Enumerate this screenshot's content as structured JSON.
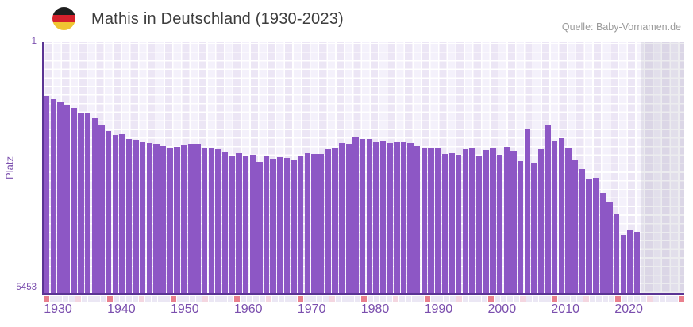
{
  "header": {
    "title": "Mathis in Deutschland (1930-2023)",
    "flag_icon": "german-flag-roundel",
    "flag_colors": [
      "#1e1e1e",
      "#d6212c",
      "#f0c532"
    ]
  },
  "source": {
    "label": "Quelle: Baby-Vornamen.de"
  },
  "chart_data": {
    "type": "bar",
    "title": "Mathis in Deutschland (1930-2023)",
    "xlabel": "",
    "ylabel": "Platz",
    "y_axis_inverted": true,
    "ylim": [
      1,
      5453
    ],
    "y_tick_labels": [
      "1",
      "5453"
    ],
    "x_tick_labels": [
      "1930",
      "1940",
      "1950",
      "1960",
      "1970",
      "1980",
      "1990",
      "2000",
      "2010",
      "2020"
    ],
    "x_ticks": [
      1930,
      1940,
      1950,
      1960,
      1970,
      1980,
      1990,
      2000,
      2010,
      2020
    ],
    "grid": true,
    "legend": false,
    "shaded_region_after_data": true,
    "years": [
      1937,
      1938,
      1939,
      1940,
      1941,
      1942,
      1943,
      1944,
      1945,
      1946,
      1947,
      1948,
      1949,
      1950,
      1951,
      1952,
      1953,
      1954,
      1955,
      1956,
      1957,
      1958,
      1959,
      1960,
      1961,
      1962,
      1963,
      1964,
      1965,
      1966,
      1967,
      1968,
      1969,
      1970,
      1971,
      1972,
      1973,
      1974,
      1975,
      1976,
      1977,
      1978,
      1979,
      1980,
      1981,
      1982,
      1983,
      1984,
      1985,
      1986,
      1987,
      1988,
      1989,
      1990,
      1991,
      1992,
      1993,
      1994,
      1995,
      1996,
      1997,
      1998,
      1999,
      2000,
      2001,
      2002,
      2003,
      2004,
      2005,
      2006,
      2007,
      2008,
      2009,
      2010,
      2011,
      2012,
      2013,
      2014,
      2015,
      2016,
      2017,
      2018,
      2019,
      2020,
      2021,
      2022,
      2023
    ],
    "ranks": [
      1167,
      1241,
      1315,
      1357,
      1431,
      1529,
      1546,
      1660,
      1798,
      1930,
      2016,
      2004,
      2103,
      2142,
      2177,
      2189,
      2218,
      2258,
      2304,
      2275,
      2246,
      2235,
      2218,
      2321,
      2304,
      2331,
      2390,
      2476,
      2418,
      2493,
      2447,
      2607,
      2493,
      2533,
      2504,
      2521,
      2562,
      2493,
      2418,
      2430,
      2430,
      2331,
      2287,
      2189,
      2218,
      2073,
      2114,
      2114,
      2171,
      2149,
      2189,
      2177,
      2177,
      2194,
      2263,
      2287,
      2304,
      2304,
      2435,
      2418,
      2447,
      2331,
      2304,
      2476,
      2343,
      2287,
      2459,
      2275,
      2361,
      2590,
      1873,
      2619,
      2331,
      1815,
      2159,
      2090,
      2321,
      2580,
      2762,
      2981,
      2955,
      3279,
      3481,
      3739,
      4199,
      4083,
      4130
    ],
    "colors": {
      "bar": "#8d57c5",
      "axis": "#5b3494",
      "tick_label": "#7b4fae",
      "strip_default": "#ebe7f4",
      "strip_pink": "#f4d6e0",
      "strip_red": "#e9808d"
    }
  }
}
